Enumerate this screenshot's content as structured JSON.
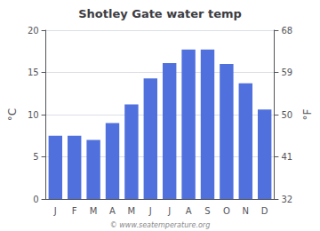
{
  "chart_data": {
    "type": "bar",
    "title": "Shotley Gate water temp",
    "categories": [
      "J",
      "F",
      "M",
      "A",
      "M",
      "J",
      "J",
      "A",
      "S",
      "O",
      "N",
      "D"
    ],
    "values": [
      7.5,
      7.5,
      7.0,
      9.0,
      11.2,
      14.3,
      16.1,
      17.7,
      17.7,
      16.0,
      13.7,
      10.6
    ],
    "ylabel": "°C",
    "y2label": "°F",
    "ylim": [
      0,
      20
    ],
    "yticks": [
      0,
      5,
      10,
      15,
      20
    ],
    "y2lim": [
      32,
      68
    ],
    "y2ticks": [
      32,
      41,
      50,
      59,
      68
    ],
    "annotations": [
      "© www.seatemperature.org"
    ],
    "grid": true
  }
}
